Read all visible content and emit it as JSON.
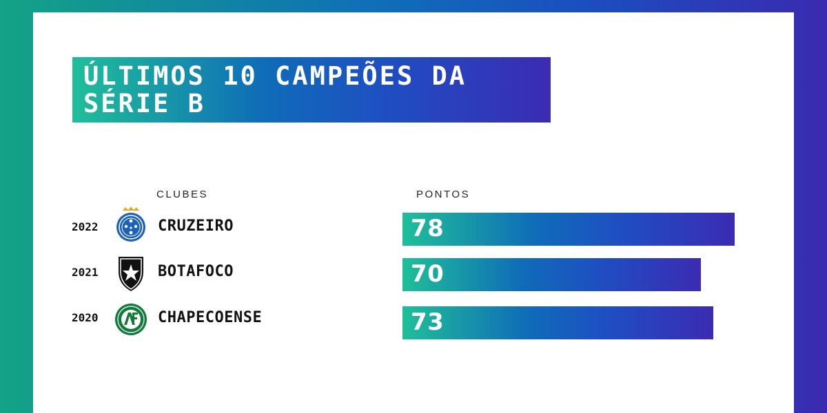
{
  "title": "ÚLTIMOS 10 CAMPEÕES DA SÉRIE B",
  "headers": {
    "clubes": "CLUBES",
    "pontos": "PONTOS"
  },
  "colors": {
    "teal": "#1fbf99",
    "blue": "#1e4fc2",
    "purple": "#3b2bb3"
  },
  "rows": [
    {
      "year": "2022",
      "club": "CRUZEIRO",
      "points": "78",
      "logo": "cruzeiro-crest-icon"
    },
    {
      "year": "2021",
      "club": "BOTAFOCO",
      "points": "70",
      "logo": "botafogo-crest-icon"
    },
    {
      "year": "2020",
      "club": "CHAPECOENSE",
      "points": "73",
      "logo": "chapecoense-crest-icon"
    }
  ],
  "chart_data": {
    "type": "bar",
    "orientation": "horizontal",
    "categories": [
      "2022 CRUZEIRO",
      "2021 BOTAFOCO",
      "2020 CHAPECOENSE"
    ],
    "values": [
      78,
      70,
      73
    ],
    "title": "ÚLTIMOS 10 CAMPEÕES DA SÉRIE B",
    "xlabel": "PONTOS",
    "ylabel": "CLUBES",
    "grid": false,
    "legend": "none"
  }
}
